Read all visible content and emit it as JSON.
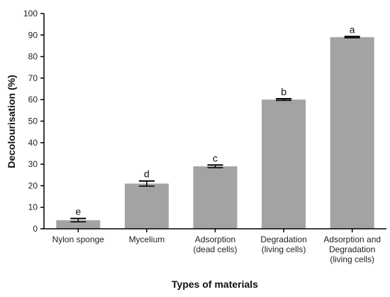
{
  "chart_data": {
    "type": "bar",
    "title": "",
    "xlabel": "Types of materials",
    "ylabel": "Decolourisation (%)",
    "ylim": [
      0,
      100
    ],
    "yticks": [
      0,
      10,
      20,
      30,
      40,
      50,
      60,
      70,
      80,
      90,
      100
    ],
    "grid": false,
    "bar_color": "#a3a3a6",
    "categories": [
      {
        "lines": [
          "Nylon sponge"
        ]
      },
      {
        "lines": [
          "Mycelium"
        ]
      },
      {
        "lines": [
          "Adsorption",
          "(dead cells)"
        ]
      },
      {
        "lines": [
          "Degradation",
          "(living cells)"
        ]
      },
      {
        "lines": [
          "Adsorption and",
          "Degradation",
          "(living cells)"
        ]
      }
    ],
    "values": [
      4,
      21,
      29,
      60,
      89
    ],
    "errors": [
      0.8,
      1.2,
      0.6,
      0.4,
      0.3
    ],
    "significance": [
      "e",
      "d",
      "c",
      "b",
      "a"
    ]
  }
}
